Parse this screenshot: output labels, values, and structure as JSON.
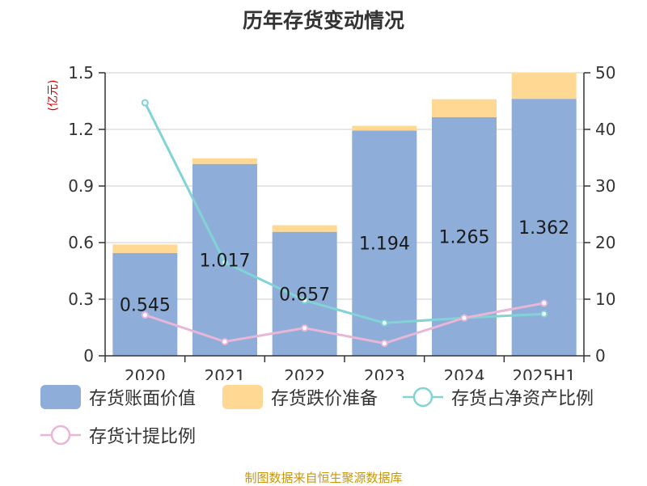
{
  "title": "历年存货变动情况",
  "left_unit": "(亿元)",
  "right_unit": "%",
  "source": "制图数据来自恒生聚源数据库",
  "colors": {
    "book_value": "#8eadd9",
    "reserve": "#ffd894",
    "net_asset_ratio": "#82d3d6",
    "provision_ratio": "#e8b6d6"
  },
  "chart_data": {
    "type": "bar",
    "categories": [
      "2020",
      "2021",
      "2022",
      "2023",
      "2024",
      "2025H1"
    ],
    "series": [
      {
        "name": "存货账面价值",
        "type": "bar",
        "stack": "inventory",
        "axis": "left",
        "values": [
          0.545,
          1.017,
          0.657,
          1.194,
          1.265,
          1.362
        ],
        "labels": [
          "0.545",
          "1.017",
          "0.657",
          "1.194",
          "1.265",
          "1.362"
        ]
      },
      {
        "name": "存货跌价准备",
        "type": "bar",
        "stack": "inventory",
        "axis": "left",
        "values": [
          0.045,
          0.03,
          0.035,
          0.025,
          0.095,
          0.14
        ]
      },
      {
        "name": "存货占净资产比例",
        "type": "line",
        "axis": "right",
        "values": [
          44.7,
          16.5,
          9.8,
          5.8,
          6.7,
          7.4
        ]
      },
      {
        "name": "存货计提比例",
        "type": "line",
        "axis": "right",
        "values": [
          7.2,
          2.5,
          4.9,
          2.2,
          6.7,
          9.3
        ]
      }
    ],
    "y_left": {
      "min": 0,
      "max": 1.5,
      "ticks": [
        "0",
        "0.3",
        "0.6",
        "0.9",
        "1.2",
        "1.5"
      ]
    },
    "y_right": {
      "min": 0,
      "max": 50,
      "ticks": [
        "0",
        "10",
        "20",
        "30",
        "40",
        "50"
      ]
    },
    "grid": true,
    "legend_position": "bottom"
  }
}
